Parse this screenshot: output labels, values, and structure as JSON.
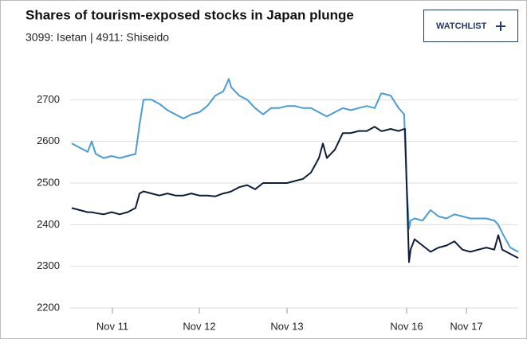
{
  "chart_data": {
    "type": "line",
    "title": "Shares of tourism-exposed stocks in Japan plunge",
    "subtitle": "3099: Isetan | 4911: Shiseido",
    "x": [
      0,
      10,
      20,
      25,
      30,
      40,
      50,
      60,
      70,
      80,
      85,
      90,
      100,
      110,
      120,
      130,
      140,
      150,
      160,
      170,
      180,
      190,
      197,
      200,
      210,
      220,
      230,
      240,
      250,
      260,
      270,
      280,
      290,
      300,
      310,
      315,
      320,
      330,
      340,
      350,
      360,
      370,
      380,
      388,
      390,
      400,
      410,
      417,
      418,
      420,
      423,
      425,
      430,
      440,
      450,
      460,
      470,
      480,
      490,
      500,
      510,
      520,
      530,
      535,
      540,
      550,
      560
    ],
    "series": [
      {
        "color": "#4a9bd6",
        "values": [
          2595,
          2585,
          2575,
          2600,
          2570,
          2560,
          2565,
          2560,
          2565,
          2570,
          2640,
          2700,
          2700,
          2690,
          2675,
          2665,
          2655,
          2665,
          2670,
          2685,
          2710,
          2720,
          2750,
          2730,
          2710,
          2700,
          2680,
          2665,
          2680,
          2680,
          2685,
          2685,
          2680,
          2680,
          2670,
          2665,
          2660,
          2670,
          2680,
          2675,
          2680,
          2685,
          2680,
          2715,
          2715,
          2710,
          2680,
          2665,
          2600,
          2500,
          2390,
          2410,
          2415,
          2410,
          2435,
          2420,
          2415,
          2425,
          2420,
          2415,
          2415,
          2415,
          2410,
          2400,
          2380,
          2345,
          2335
        ]
      },
      {
        "color": "#0e1d3a",
        "values": [
          2440,
          2435,
          2430,
          2430,
          2428,
          2425,
          2430,
          2425,
          2430,
          2440,
          2475,
          2480,
          2475,
          2470,
          2475,
          2470,
          2470,
          2475,
          2470,
          2470,
          2468,
          2475,
          2478,
          2480,
          2490,
          2495,
          2485,
          2500,
          2500,
          2500,
          2500,
          2505,
          2510,
          2525,
          2560,
          2595,
          2560,
          2580,
          2620,
          2620,
          2625,
          2625,
          2635,
          2625,
          2625,
          2630,
          2625,
          2630,
          2630,
          2500,
          2310,
          2340,
          2365,
          2350,
          2335,
          2345,
          2350,
          2360,
          2340,
          2335,
          2340,
          2345,
          2340,
          2375,
          2340,
          2330,
          2320
        ]
      }
    ],
    "xlim": [
      0,
      560
    ],
    "xticks": [
      {
        "value": 51,
        "label": "Nov 11"
      },
      {
        "value": 160,
        "label": "Nov 12"
      },
      {
        "value": 270,
        "label": "Nov 13"
      },
      {
        "value": 420,
        "label": "Nov 16"
      },
      {
        "value": 495,
        "label": "Nov 17"
      }
    ],
    "ylim": [
      2200,
      2800
    ],
    "yticks": [
      2200,
      2300,
      2400,
      2500,
      2600,
      2700
    ],
    "grid": true
  },
  "watchlist_button": {
    "label": "WATCHLIST"
  }
}
